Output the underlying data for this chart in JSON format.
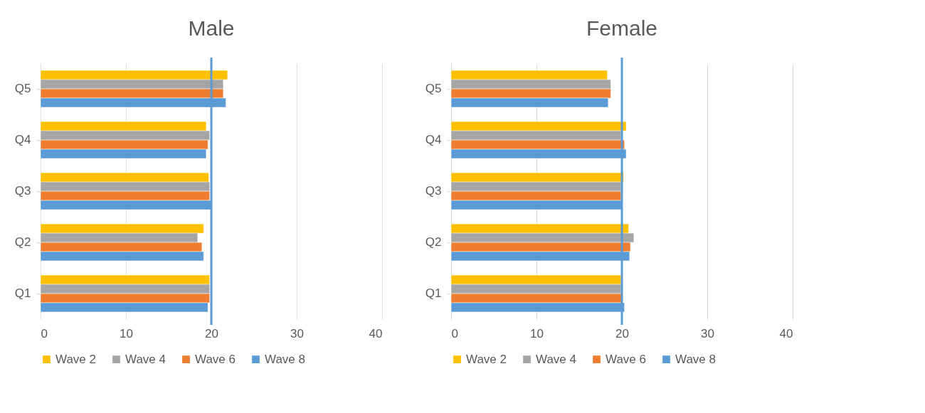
{
  "chart_data": [
    {
      "type": "bar",
      "orientation": "horizontal",
      "title": "Male",
      "categories": [
        "Q5",
        "Q4",
        "Q3",
        "Q2",
        "Q1"
      ],
      "xlim": [
        0,
        40
      ],
      "xticks": [
        0,
        10,
        20,
        30,
        40
      ],
      "grid": "x",
      "legend": "bottom",
      "series": [
        {
          "name": "Wave 2",
          "color": "#ffc000",
          "values": [
            21.9,
            19.4,
            19.7,
            19.1,
            19.8
          ]
        },
        {
          "name": "Wave 4",
          "color": "#a5a5a5",
          "values": [
            21.4,
            19.8,
            19.8,
            18.4,
            19.8
          ]
        },
        {
          "name": "Wave 6",
          "color": "#ed7d31",
          "values": [
            21.4,
            19.6,
            19.8,
            18.9,
            19.8
          ]
        },
        {
          "name": "Wave 8",
          "color": "#5b9bd5",
          "values": [
            21.7,
            19.4,
            20.0,
            19.1,
            19.6
          ]
        }
      ],
      "ref_lines": [
        {
          "axis": "x",
          "value": 20,
          "color": "#5b9bd5"
        }
      ]
    },
    {
      "type": "bar",
      "orientation": "horizontal",
      "title": "Female",
      "categories": [
        "Q5",
        "Q4",
        "Q3",
        "Q2",
        "Q1"
      ],
      "xlim": [
        0,
        40
      ],
      "xticks": [
        0,
        10,
        20,
        30,
        40
      ],
      "grid": "x",
      "legend": "bottom",
      "series": [
        {
          "name": "Wave 2",
          "color": "#ffc000",
          "values": [
            18.3,
            20.5,
            20.2,
            20.8,
            19.9
          ]
        },
        {
          "name": "Wave 4",
          "color": "#a5a5a5",
          "values": [
            18.7,
            19.9,
            19.9,
            21.4,
            19.9
          ]
        },
        {
          "name": "Wave 6",
          "color": "#ed7d31",
          "values": [
            18.7,
            20.3,
            19.9,
            21.0,
            20.1
          ]
        },
        {
          "name": "Wave 8",
          "color": "#5b9bd5",
          "values": [
            18.4,
            20.5,
            20.0,
            20.9,
            20.3
          ]
        }
      ],
      "ref_lines": [
        {
          "axis": "x",
          "value": 20,
          "color": "#5b9bd5"
        }
      ]
    }
  ]
}
